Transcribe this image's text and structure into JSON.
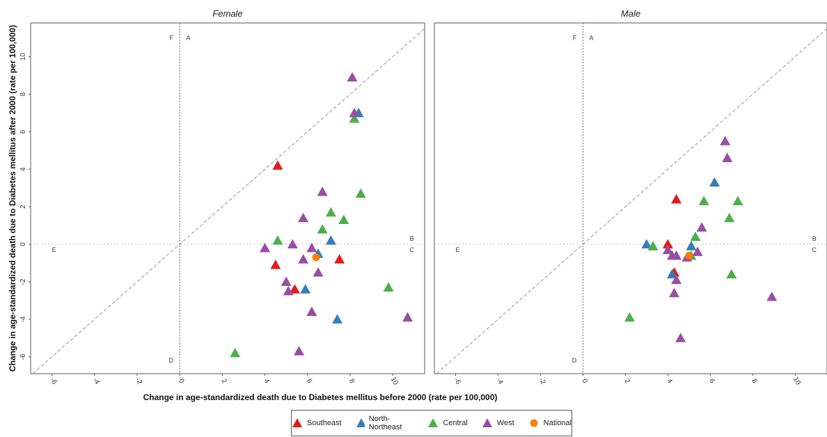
{
  "chart_data": {
    "type": "scatter",
    "xlabel": "Change in age-standardized death due to Diabetes mellitus before 2000 (rate per 100,000)",
    "ylabel": "Change in age-standardized death due to Diabetes mellitus after 2000 (rate per 100,000)",
    "xlim": [
      -7,
      11.5
    ],
    "ylim": [
      -6.9,
      11.8
    ],
    "x_ticks": [
      "-6",
      "-4",
      "-2",
      "0",
      "2",
      "4",
      "6",
      "8",
      "10"
    ],
    "y_ticks": [
      "-6",
      "-4",
      "-2",
      "0",
      "2",
      "4",
      "6",
      "8",
      "10"
    ],
    "reference_lines": [
      "x = 0",
      "y = 0",
      "y = x"
    ],
    "legend_position": "bottom",
    "colors": {
      "Southeast": "#e41a1c",
      "North-Northeast": "#377eb8",
      "Central": "#4daf4a",
      "West": "#984ea3",
      "National": "#ff7f00"
    },
    "legend": [
      {
        "name": "Southeast",
        "marker": "triangle"
      },
      {
        "name": "North-Northeast",
        "marker": "triangle"
      },
      {
        "name": "Central",
        "marker": "triangle"
      },
      {
        "name": "West",
        "marker": "triangle"
      },
      {
        "name": "National",
        "marker": "circle"
      }
    ],
    "panels": [
      {
        "title": "Female",
        "quadrant_labels": [
          {
            "text": "F",
            "x": -0.3,
            "y": 11.0
          },
          {
            "text": "A",
            "x": 0.3,
            "y": 11.0
          },
          {
            "text": "B",
            "x": 11.0,
            "y": 0.3
          },
          {
            "text": "C",
            "x": 11.0,
            "y": -0.3
          },
          {
            "text": "D",
            "x": -0.3,
            "y": -6.2
          },
          {
            "text": "E",
            "x": -6.0,
            "y": -0.3
          }
        ],
        "series": [
          {
            "name": "Southeast",
            "points": [
              [
                4.6,
                4.2
              ],
              [
                4.5,
                -1.1
              ],
              [
                5.4,
                -2.4
              ],
              [
                7.5,
                -0.8
              ]
            ]
          },
          {
            "name": "North-Northeast",
            "points": [
              [
                8.4,
                7.0
              ],
              [
                7.1,
                0.2
              ],
              [
                6.5,
                -0.5
              ],
              [
                5.9,
                -2.4
              ],
              [
                7.4,
                -4.0
              ]
            ]
          },
          {
            "name": "Central",
            "points": [
              [
                8.2,
                6.7
              ],
              [
                8.5,
                2.7
              ],
              [
                7.1,
                1.7
              ],
              [
                7.7,
                1.3
              ],
              [
                6.7,
                0.8
              ],
              [
                4.6,
                0.2
              ],
              [
                9.8,
                -2.3
              ],
              [
                2.6,
                -5.8
              ]
            ]
          },
          {
            "name": "West",
            "points": [
              [
                8.1,
                8.9
              ],
              [
                8.2,
                7.0
              ],
              [
                6.7,
                2.8
              ],
              [
                5.8,
                1.4
              ],
              [
                4.0,
                -0.2
              ],
              [
                5.3,
                0.0
              ],
              [
                6.2,
                -0.2
              ],
              [
                5.8,
                -0.8
              ],
              [
                6.5,
                -1.5
              ],
              [
                5.0,
                -2.0
              ],
              [
                5.1,
                -2.5
              ],
              [
                6.2,
                -3.6
              ],
              [
                5.6,
                -5.7
              ],
              [
                10.7,
                -3.9
              ]
            ]
          },
          {
            "name": "National",
            "points": [
              [
                6.4,
                -0.7
              ]
            ]
          }
        ]
      },
      {
        "title": "Male",
        "quadrant_labels": [
          {
            "text": "F",
            "x": -0.3,
            "y": 11.0
          },
          {
            "text": "A",
            "x": 0.3,
            "y": 11.0
          },
          {
            "text": "B",
            "x": 11.0,
            "y": 0.3
          },
          {
            "text": "C",
            "x": 11.0,
            "y": -0.3
          },
          {
            "text": "D",
            "x": -0.3,
            "y": -6.2
          },
          {
            "text": "E",
            "x": -6.0,
            "y": -0.3
          }
        ],
        "series": [
          {
            "name": "Southeast",
            "points": [
              [
                4.4,
                2.4
              ],
              [
                4.0,
                0.0
              ],
              [
                4.3,
                -1.5
              ]
            ]
          },
          {
            "name": "North-Northeast",
            "points": [
              [
                6.2,
                3.3
              ],
              [
                3.0,
                0.0
              ],
              [
                5.1,
                -0.1
              ],
              [
                4.2,
                -1.6
              ]
            ]
          },
          {
            "name": "Central",
            "points": [
              [
                5.7,
                2.3
              ],
              [
                7.3,
                2.3
              ],
              [
                6.9,
                1.4
              ],
              [
                5.3,
                0.4
              ],
              [
                3.3,
                -0.1
              ],
              [
                5.1,
                -0.6
              ],
              [
                7.0,
                -1.6
              ],
              [
                2.2,
                -3.9
              ]
            ]
          },
          {
            "name": "West",
            "points": [
              [
                6.7,
                5.5
              ],
              [
                6.8,
                4.6
              ],
              [
                5.6,
                0.9
              ],
              [
                4.0,
                -0.3
              ],
              [
                4.2,
                -0.6
              ],
              [
                4.4,
                -0.6
              ],
              [
                5.4,
                -0.4
              ],
              [
                4.9,
                -0.7
              ],
              [
                4.4,
                -1.9
              ],
              [
                4.3,
                -2.6
              ],
              [
                4.6,
                -5.0
              ],
              [
                8.9,
                -2.8
              ]
            ]
          },
          {
            "name": "National",
            "points": [
              [
                5.0,
                -0.6
              ]
            ]
          }
        ]
      }
    ]
  }
}
